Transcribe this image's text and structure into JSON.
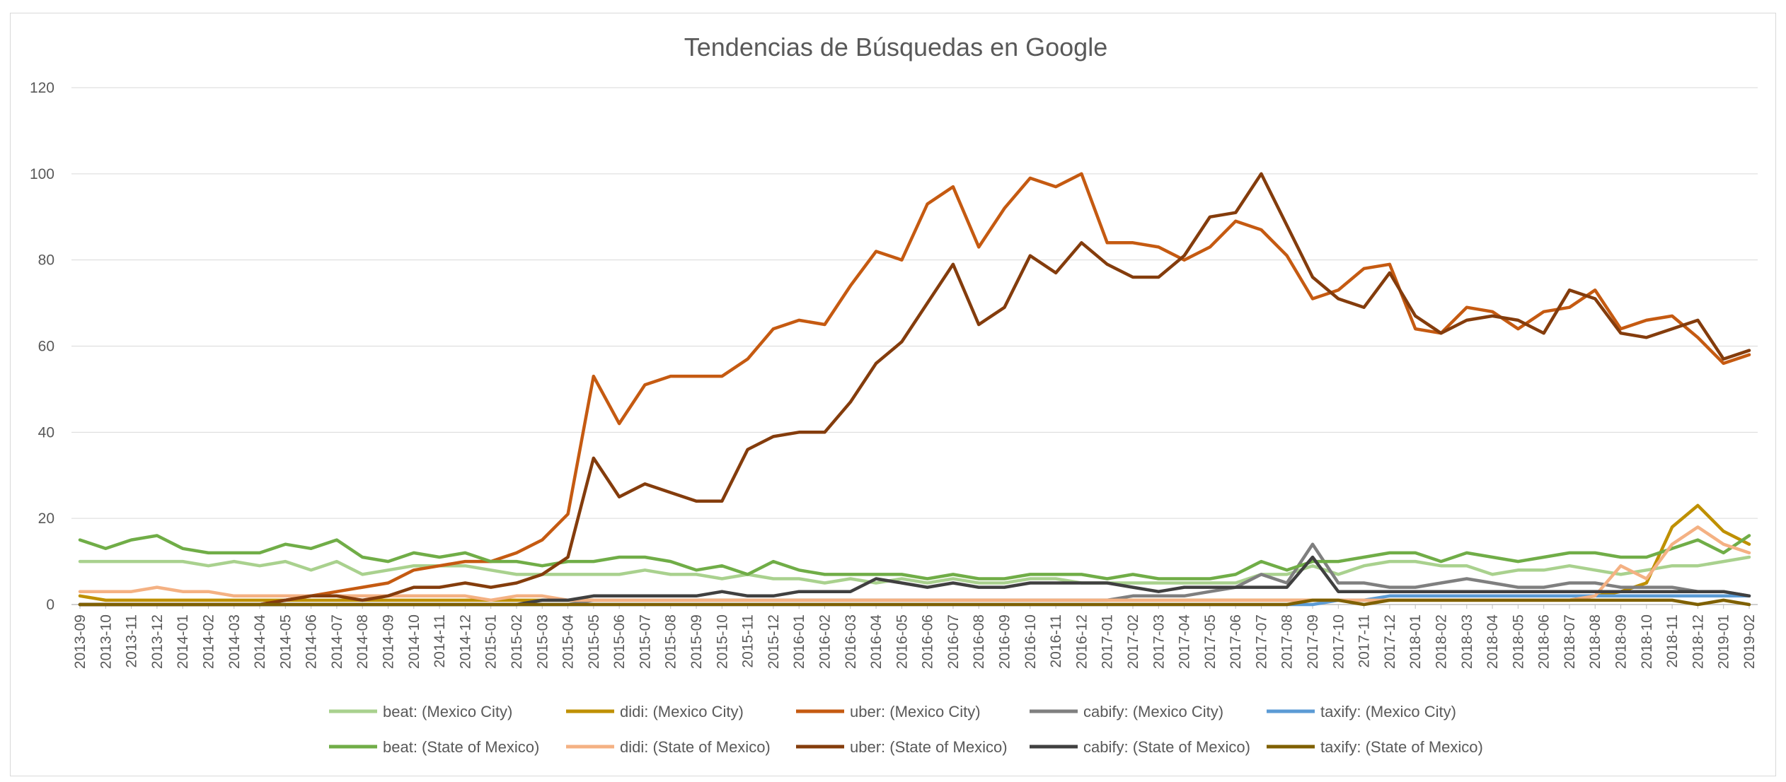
{
  "chart_data": {
    "type": "line",
    "title": "Tendencias de Búsquedas en Google",
    "xlabel": "",
    "ylabel": "",
    "ylim": [
      0,
      120
    ],
    "yticks": [
      "0",
      "20",
      "40",
      "60",
      "80",
      "100",
      "120"
    ],
    "grid": "horizontal",
    "legend_position": "bottom",
    "x": [
      "2013-09",
      "2013-10",
      "2013-11",
      "2013-12",
      "2014-01",
      "2014-02",
      "2014-03",
      "2014-04",
      "2014-05",
      "2014-06",
      "2014-07",
      "2014-08",
      "2014-09",
      "2014-10",
      "2014-11",
      "2014-12",
      "2015-01",
      "2015-02",
      "2015-03",
      "2015-04",
      "2015-05",
      "2015-06",
      "2015-07",
      "2015-08",
      "2015-09",
      "2015-10",
      "2015-11",
      "2015-12",
      "2016-01",
      "2016-02",
      "2016-03",
      "2016-04",
      "2016-05",
      "2016-06",
      "2016-07",
      "2016-08",
      "2016-09",
      "2016-10",
      "2016-11",
      "2016-12",
      "2017-01",
      "2017-02",
      "2017-03",
      "2017-04",
      "2017-05",
      "2017-06",
      "2017-07",
      "2017-08",
      "2017-09",
      "2017-10",
      "2017-11",
      "2017-12",
      "2018-01",
      "2018-02",
      "2018-03",
      "2018-04",
      "2018-05",
      "2018-06",
      "2018-07",
      "2018-08",
      "2018-09",
      "2018-10",
      "2018-11",
      "2018-12",
      "2019-01",
      "2019-02"
    ],
    "series": [
      {
        "name": "beat: (Mexico City)",
        "color": "#a9d18e",
        "values": [
          10,
          10,
          10,
          10,
          10,
          9,
          10,
          9,
          10,
          8,
          10,
          7,
          8,
          9,
          9,
          9,
          8,
          7,
          7,
          7,
          7,
          7,
          8,
          7,
          7,
          6,
          7,
          6,
          6,
          5,
          6,
          5,
          6,
          5,
          6,
          5,
          5,
          6,
          6,
          5,
          5,
          5,
          5,
          5,
          5,
          5,
          7,
          7,
          9,
          7,
          9,
          10,
          10,
          9,
          9,
          7,
          8,
          8,
          9,
          8,
          7,
          8,
          9,
          9,
          10,
          11
        ]
      },
      {
        "name": "didi: (Mexico City)",
        "color": "#bf9000",
        "values": [
          2,
          1,
          1,
          1,
          1,
          1,
          1,
          1,
          1,
          1,
          1,
          1,
          1,
          1,
          1,
          1,
          1,
          1,
          1,
          1,
          1,
          1,
          1,
          1,
          1,
          1,
          1,
          1,
          1,
          1,
          1,
          1,
          1,
          1,
          1,
          1,
          1,
          1,
          1,
          1,
          1,
          1,
          1,
          1,
          1,
          1,
          1,
          1,
          1,
          1,
          1,
          1,
          1,
          1,
          1,
          1,
          1,
          1,
          1,
          2,
          3,
          5,
          18,
          23,
          17,
          14
        ]
      },
      {
        "name": "uber: (Mexico City)",
        "color": "#c55a11",
        "values": [
          0,
          0,
          0,
          0,
          0,
          0,
          0,
          0,
          1,
          2,
          3,
          4,
          5,
          8,
          9,
          10,
          10,
          12,
          15,
          21,
          53,
          42,
          51,
          53,
          53,
          53,
          57,
          64,
          66,
          65,
          74,
          82,
          80,
          93,
          97,
          83,
          92,
          99,
          97,
          100,
          84,
          84,
          83,
          80,
          83,
          89,
          87,
          81,
          71,
          73,
          78,
          79,
          64,
          63,
          69,
          68,
          64,
          68,
          69,
          73,
          64,
          66,
          67,
          62,
          56,
          58
        ]
      },
      {
        "name": "cabify: (Mexico City)",
        "color": "#7f7f7f",
        "values": [
          0,
          0,
          0,
          0,
          0,
          0,
          0,
          0,
          0,
          0,
          0,
          0,
          0,
          0,
          0,
          0,
          0,
          0,
          0,
          0,
          1,
          1,
          1,
          1,
          1,
          1,
          1,
          1,
          1,
          1,
          1,
          1,
          1,
          1,
          1,
          1,
          1,
          1,
          1,
          1,
          1,
          2,
          2,
          2,
          3,
          4,
          7,
          5,
          14,
          5,
          5,
          4,
          4,
          5,
          6,
          5,
          4,
          4,
          5,
          5,
          4,
          4,
          4,
          3,
          3,
          2
        ]
      },
      {
        "name": "taxify: (Mexico City)",
        "color": "#5b9bd5",
        "values": [
          0,
          0,
          0,
          0,
          0,
          0,
          0,
          0,
          0,
          0,
          0,
          0,
          0,
          0,
          0,
          0,
          0,
          0,
          0,
          0,
          0,
          0,
          0,
          0,
          0,
          0,
          0,
          0,
          0,
          0,
          0,
          0,
          0,
          0,
          0,
          0,
          0,
          0,
          0,
          0,
          0,
          0,
          0,
          0,
          0,
          0,
          0,
          0,
          0,
          1,
          1,
          2,
          2,
          2,
          2,
          2,
          2,
          2,
          2,
          2,
          2,
          2,
          2,
          2,
          2,
          2
        ]
      },
      {
        "name": "beat: (State of Mexico)",
        "color": "#70ad47",
        "values": [
          15,
          13,
          15,
          16,
          13,
          12,
          12,
          12,
          14,
          13,
          15,
          11,
          10,
          12,
          11,
          12,
          10,
          10,
          9,
          10,
          10,
          11,
          11,
          10,
          8,
          9,
          7,
          10,
          8,
          7,
          7,
          7,
          7,
          6,
          7,
          6,
          6,
          7,
          7,
          7,
          6,
          7,
          6,
          6,
          6,
          7,
          10,
          8,
          10,
          10,
          11,
          12,
          12,
          10,
          12,
          11,
          10,
          11,
          12,
          12,
          11,
          11,
          13,
          15,
          12,
          16
        ]
      },
      {
        "name": "didi: (State of Mexico)",
        "color": "#f4b183",
        "values": [
          3,
          3,
          3,
          4,
          3,
          3,
          2,
          2,
          2,
          2,
          2,
          2,
          2,
          2,
          2,
          2,
          1,
          2,
          2,
          1,
          1,
          1,
          1,
          1,
          1,
          1,
          1,
          1,
          1,
          1,
          1,
          1,
          1,
          1,
          1,
          1,
          1,
          1,
          1,
          1,
          1,
          1,
          1,
          1,
          1,
          1,
          1,
          1,
          1,
          1,
          1,
          1,
          1,
          1,
          1,
          1,
          1,
          1,
          1,
          2,
          9,
          6,
          14,
          18,
          14,
          12
        ]
      },
      {
        "name": "uber: (State of Mexico)",
        "color": "#843c0c",
        "values": [
          0,
          0,
          0,
          0,
          0,
          0,
          0,
          0,
          1,
          2,
          2,
          1,
          2,
          4,
          4,
          5,
          4,
          5,
          7,
          11,
          34,
          25,
          28,
          26,
          24,
          24,
          36,
          39,
          40,
          40,
          47,
          56,
          61,
          70,
          79,
          65,
          69,
          81,
          77,
          84,
          79,
          76,
          76,
          81,
          90,
          91,
          100,
          88,
          76,
          71,
          69,
          77,
          67,
          63,
          66,
          67,
          66,
          63,
          73,
          71,
          63,
          62,
          64,
          66,
          57,
          59
        ]
      },
      {
        "name": "cabify: (State of Mexico)",
        "color": "#404040",
        "values": [
          0,
          0,
          0,
          0,
          0,
          0,
          0,
          0,
          0,
          0,
          0,
          0,
          0,
          0,
          0,
          0,
          0,
          0,
          1,
          1,
          2,
          2,
          2,
          2,
          2,
          3,
          2,
          2,
          3,
          3,
          3,
          6,
          5,
          4,
          5,
          4,
          4,
          5,
          5,
          5,
          5,
          4,
          3,
          4,
          4,
          4,
          4,
          4,
          11,
          3,
          3,
          3,
          3,
          3,
          3,
          3,
          3,
          3,
          3,
          3,
          3,
          3,
          3,
          3,
          3,
          2
        ]
      },
      {
        "name": "taxify: (State of Mexico)",
        "color": "#7f6000",
        "values": [
          0,
          0,
          0,
          0,
          0,
          0,
          0,
          0,
          0,
          0,
          0,
          0,
          0,
          0,
          0,
          0,
          0,
          0,
          0,
          0,
          0,
          0,
          0,
          0,
          0,
          0,
          0,
          0,
          0,
          0,
          0,
          0,
          0,
          0,
          0,
          0,
          0,
          0,
          0,
          0,
          0,
          0,
          0,
          0,
          0,
          0,
          0,
          0,
          1,
          1,
          0,
          1,
          1,
          1,
          1,
          1,
          1,
          1,
          1,
          1,
          1,
          1,
          1,
          0,
          1,
          0
        ]
      }
    ]
  }
}
